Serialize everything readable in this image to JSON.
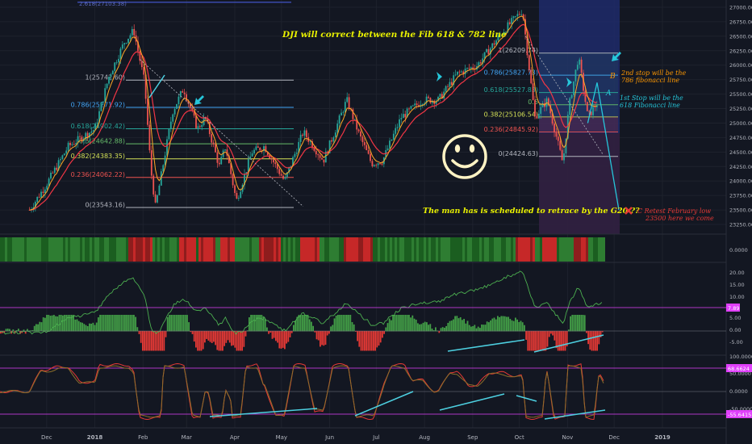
{
  "chart_data": {
    "type": "line",
    "symbol": "DJI",
    "main_axis": {
      "ticks": [
        "27000.00",
        "26750.00",
        "26500.00",
        "26250.00",
        "26000.00",
        "25750.00",
        "25500.00",
        "25250.00",
        "25000.00",
        "24750.00",
        "24500.00",
        "24250.00",
        "24000.00",
        "23750.00",
        "23500.00",
        "23250.00"
      ],
      "ylim": [
        23150,
        27150
      ]
    },
    "panel2_axis": {
      "ticks": [
        "0.0000"
      ]
    },
    "panel3_axis": {
      "ticks": [
        "20.00",
        "15.00",
        "10.00",
        "5.00",
        "0.00",
        "-5.00"
      ],
      "badge": "7.89"
    },
    "panel4_axis": {
      "ticks": [
        "100.0000",
        "50.0000",
        "0.0000",
        "-50.0000"
      ],
      "badge_top": "68.6624",
      "badge_bottom": "-55.6415"
    },
    "time_axis": [
      "Dec",
      "2018",
      "Feb",
      "Mar",
      "Apr",
      "May",
      "Jun",
      "Jul",
      "Aug",
      "Sep",
      "Oct",
      "Nov",
      "Dec",
      "2019"
    ],
    "price_series": {
      "name": "DJI",
      "x": [
        "2017-11-20",
        "2017-12-01",
        "2017-12-15",
        "2018-01-01",
        "2018-01-10",
        "2018-01-20",
        "2018-01-26",
        "2018-02-02",
        "2018-02-06",
        "2018-02-09",
        "2018-02-20",
        "2018-02-27",
        "2018-03-08",
        "2018-03-13",
        "2018-03-22",
        "2018-03-26",
        "2018-04-02",
        "2018-04-12",
        "2018-04-20",
        "2018-05-03",
        "2018-05-15",
        "2018-05-28",
        "2018-06-12",
        "2018-06-20",
        "2018-06-28",
        "2018-07-05",
        "2018-07-17",
        "2018-07-31",
        "2018-08-10",
        "2018-08-22",
        "2018-09-04",
        "2018-09-21",
        "2018-10-03",
        "2018-10-11",
        "2018-10-19",
        "2018-10-29",
        "2018-11-02",
        "2018-11-08",
        "2018-11-14",
        "2018-11-20"
      ],
      "y": [
        23500,
        23950,
        24600,
        24900,
        25800,
        26400,
        26600,
        25700,
        24200,
        23550,
        25200,
        25600,
        24900,
        25100,
        24250,
        24600,
        23650,
        24500,
        24600,
        24000,
        24850,
        24350,
        25400,
        24800,
        24300,
        24350,
        25100,
        25400,
        25400,
        25850,
        26000,
        26600,
        26950,
        25100,
        25400,
        24300,
        25300,
        26150,
        25100,
        25350
      ]
    },
    "fib_left": {
      "levels": [
        {
          "label": "1(25742.60)",
          "value": 25742.6,
          "color": "#b2b5be"
        },
        {
          "label": "0.786(25271.92)",
          "value": 25271.92,
          "color": "#42a5f5"
        },
        {
          "label": "0.618(24902.42)",
          "value": 24902.42,
          "color": "#26a69a"
        },
        {
          "label": "0.5(24642.88)",
          "value": 24642.88,
          "color": "#66bb6a"
        },
        {
          "label": "0.382(24383.35)",
          "value": 24383.35,
          "color": "#d4e157"
        },
        {
          "label": "0.236(24062.22)",
          "value": 24062.22,
          "color": "#ef5350"
        },
        {
          "label": "0(23543.16)",
          "value": 23543.16,
          "color": "#b2b5be"
        }
      ],
      "top_label": "2.618(27103.38)"
    },
    "fib_right": {
      "levels": [
        {
          "label": "1(26209.74)",
          "value": 26209.74,
          "color": "#b2b5be"
        },
        {
          "label": "0.786(25827.73)",
          "value": 25827.73,
          "color": "#42a5f5"
        },
        {
          "label": "0.618(25527.83)",
          "value": 25527.83,
          "color": "#26a69a"
        },
        {
          "label": "0.5",
          "value": 25317,
          "color": "#66bb6a"
        },
        {
          "label": "0.382(25106.54)",
          "value": 25106.54,
          "color": "#d4e157"
        },
        {
          "label": "0.236(24845.92)",
          "value": 24845.92,
          "color": "#ef5350"
        },
        {
          "label": "0(24424.63)",
          "value": 24424.63,
          "color": "#b2b5be"
        }
      ]
    },
    "projection": {
      "x": [
        "2018-11-14",
        "2018-11-20",
        "2018-12-04"
      ],
      "y": [
        25000,
        25700,
        23500
      ]
    },
    "annotations": {
      "title": "DJI will correct between the Fib 618 & 782 line",
      "g20": "The man has is scheduled to retrace by the G20 ??",
      "stop2_line1": "2nd stop will be the",
      "stop2_line2": "786 fibonacci line",
      "stop1_line1": "1st Stop will be the",
      "stop1_line2": "618 Fibonacci line",
      "retest_line1": "C  Retest February low",
      "retest_line2": "23500 here we come",
      "wave_a": "A",
      "wave_b": "B",
      "smiley": "☺"
    },
    "colors": {
      "background": "#131722",
      "up": "#26a69a",
      "down": "#ef5350",
      "ema_fast": "#ffa726",
      "ema_slow": "#f23645",
      "annotation_text": "#e8f000",
      "annotation_arrow": "#26c6da",
      "retest": "#e53935",
      "stop2": "#ff9800",
      "stop1": "#26c6da"
    }
  }
}
